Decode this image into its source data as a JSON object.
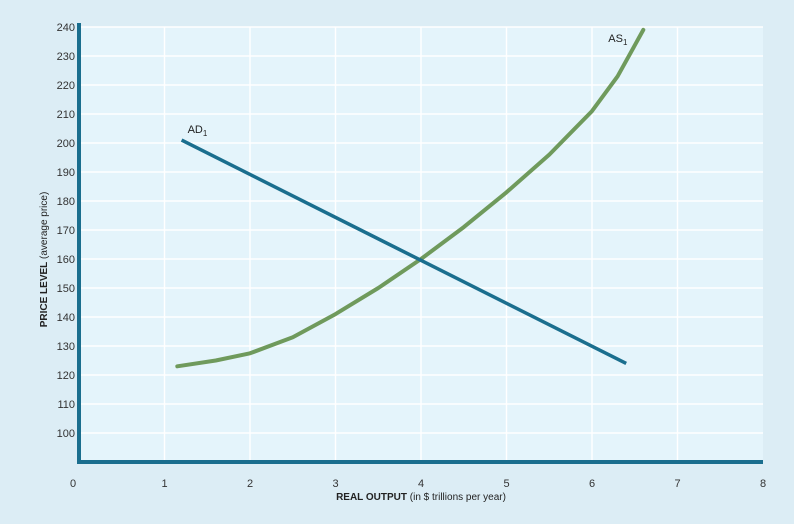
{
  "colors": {
    "page_background": "#dcedf5",
    "plot_background": "#e4f4fb",
    "gridline": "#ffffff",
    "axis": "#1a6e8e",
    "ad_line": "#1a6e8e",
    "as_line": "#6f9a5c"
  },
  "chart_data": {
    "type": "line",
    "xlabel_bold": "REAL OUTPUT",
    "xlabel_rest": " (in $ trillions per year)",
    "ylabel_bold": "PRICE LEVEL",
    "ylabel_rest": " (average price)",
    "xlim": [
      0,
      8
    ],
    "ylim": [
      90,
      240
    ],
    "origin_label": "0",
    "xticks": [
      1,
      2,
      3,
      4,
      5,
      6,
      7,
      8
    ],
    "yticks": [
      100,
      110,
      120,
      130,
      140,
      150,
      160,
      170,
      180,
      190,
      200,
      210,
      220,
      230,
      240
    ],
    "grid": true,
    "series": [
      {
        "name": "AD",
        "subscript": "1",
        "points": [
          [
            1.2,
            201
          ],
          [
            6.4,
            124
          ]
        ]
      },
      {
        "name": "AS",
        "subscript": "1",
        "points": [
          [
            1.15,
            123
          ],
          [
            1.6,
            125
          ],
          [
            2.0,
            127.5
          ],
          [
            2.5,
            133
          ],
          [
            3.0,
            141
          ],
          [
            3.5,
            150
          ],
          [
            4.0,
            160
          ],
          [
            4.5,
            171
          ],
          [
            5.0,
            183
          ],
          [
            5.5,
            196
          ],
          [
            6.0,
            211
          ],
          [
            6.3,
            223
          ],
          [
            6.6,
            239
          ]
        ]
      }
    ]
  }
}
